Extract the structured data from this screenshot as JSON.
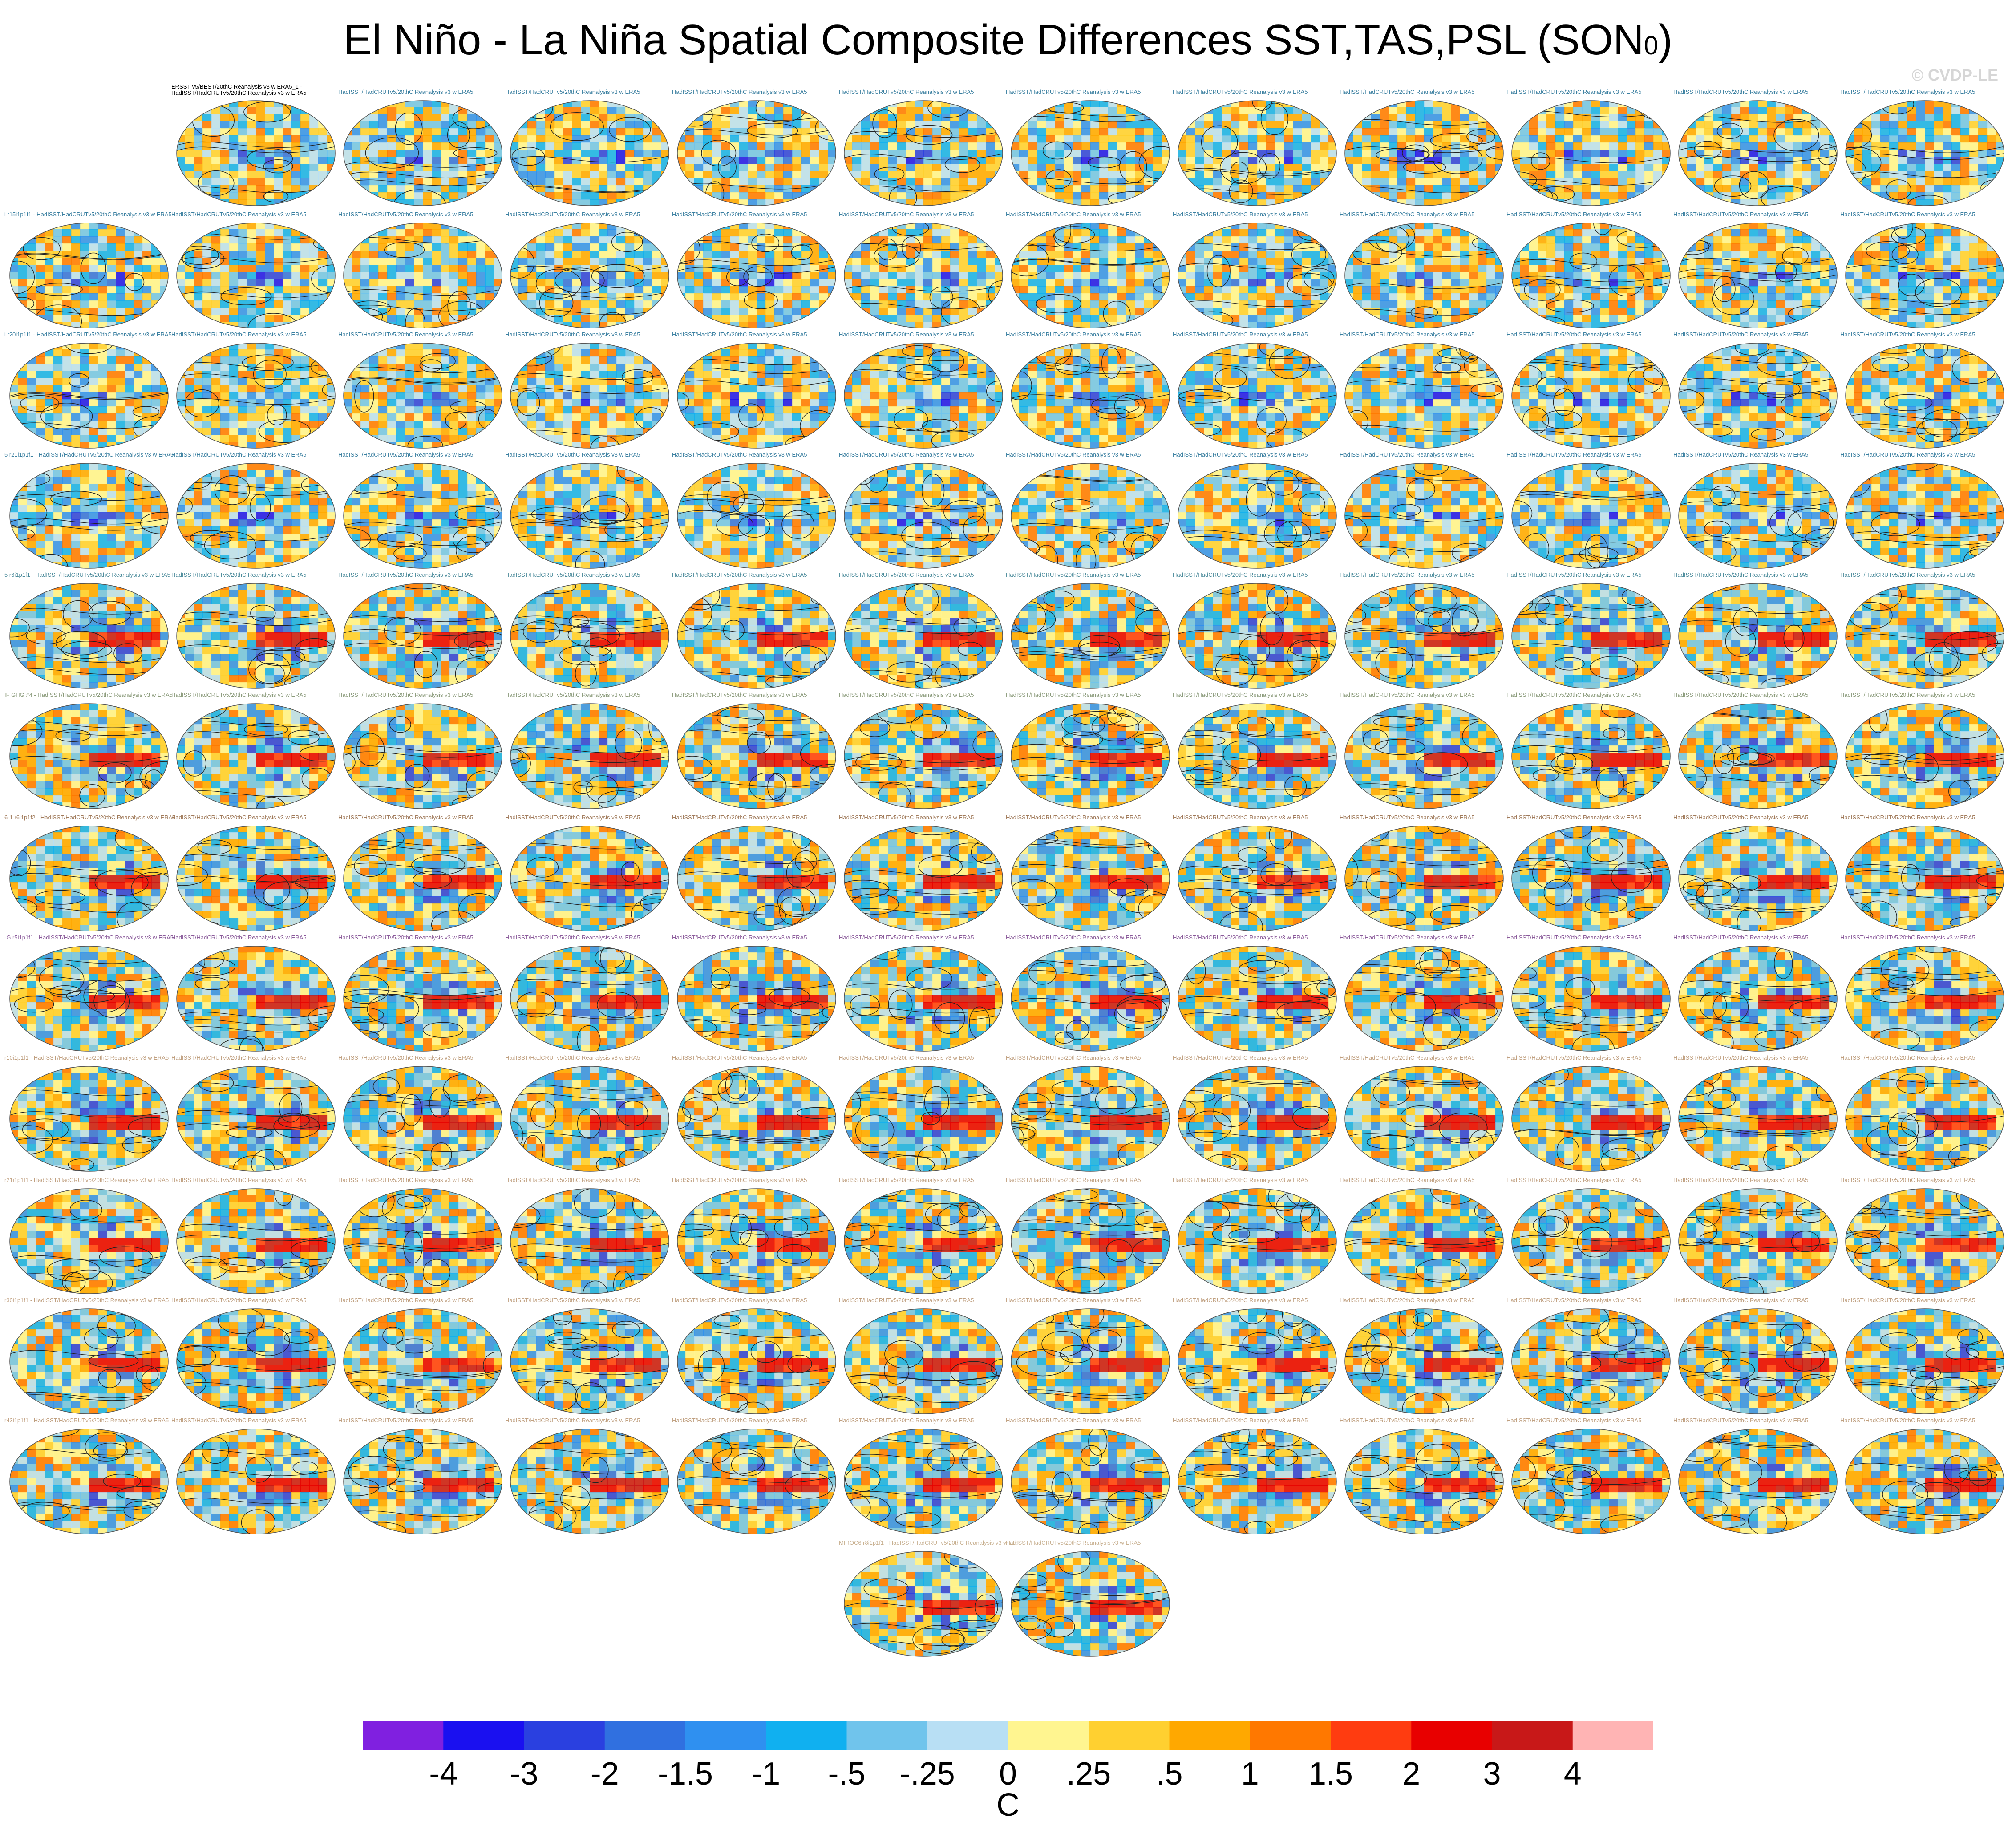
{
  "title": "El Niño - La Niña Spatial Composite Differences SST,TAS,PSL (SON",
  "title_superscript": "0",
  "title_suffix": ")",
  "copyright": "© CVDP-LE",
  "chart_data": {
    "type": "heatmap",
    "description_note": "",
    "panel_count": 145,
    "panel_layout": {
      "rows": 12,
      "columns": 12,
      "extra_bottom_row": 2,
      "first_row_panels": 11
    },
    "first_panel_header": [
      "ERSST v5/BEST/20thC Reanalysis v3 w ERA5_1 -",
      "HadISST/HadCRUTv5/20thC Reanalysis v3 w ERA5"
    ],
    "row_prefixes": [
      "",
      "i r15i1p1f1",
      "i r20i1p1f1",
      "5 r21i1p1f1",
      "5 r6i1p1f1",
      "IF GHG #4",
      "6-1 r6i1p1f2",
      "-G r5i1p1f1",
      "r10i1p1f1",
      "r21i1p1f1",
      "r30i1p1f1",
      "r43i1p1f1",
      "MIROC6 r8i1p1f1"
    ],
    "panel_header_template": "HadISST/HadCRUTv5/20thC Reanalysis v3 w ERA5",
    "header_colors": [
      "#3a7fa0",
      "#3a7fa0",
      "#3a7fa0",
      "#3a7fa0",
      "#4a8a9a",
      "#8a9a7a",
      "#a07a5a",
      "#8a5a9a",
      "#c0a080",
      "#c0a080",
      "#c0a080",
      "#c0a080",
      "#c8b090"
    ],
    "colorbar": {
      "units": "C",
      "levels": [
        "-4",
        "-3",
        "-2",
        "-1.5",
        "-1",
        "-.5",
        "-.25",
        "0",
        ".25",
        ".5",
        "1",
        "1.5",
        "2",
        "3",
        "4"
      ],
      "colors": [
        "#8020e0",
        "#1a10f0",
        "#2a40e0",
        "#3070e0",
        "#2f90f0",
        "#10b0f0",
        "#70c4ec",
        "#b8dff4",
        "#fff590",
        "#ffd030",
        "#ffa800",
        "#ff7800",
        "#ff3c10",
        "#e80000",
        "#c81818",
        "#ffb4b4"
      ]
    }
  }
}
